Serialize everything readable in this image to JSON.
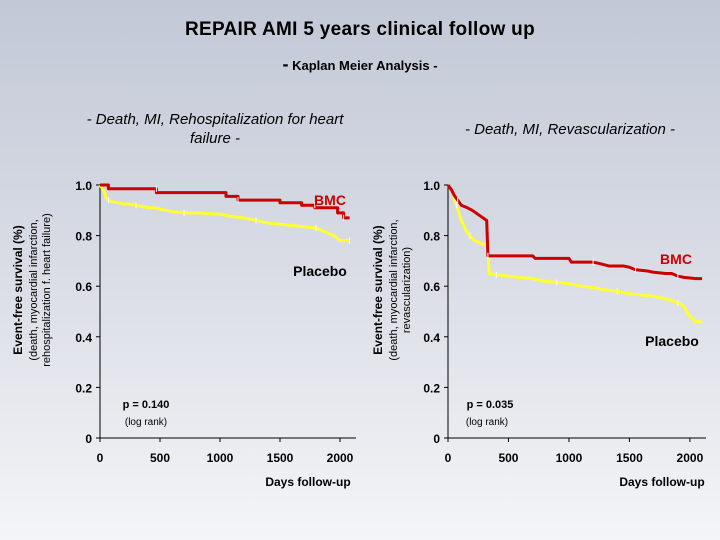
{
  "slide": {
    "title": "REPAIR AMI 5 years clinical follow up",
    "subtitle_dash": "-",
    "subtitle": "Kaplan Meier Analysis -"
  },
  "colors": {
    "bmc": "#cc0000",
    "placebo": "#ffff33"
  },
  "chart_data": [
    {
      "type": "line",
      "title": "- Death, MI, Rehospitalization for heart failure -",
      "ylabel_line1": "Event-free survival (%)",
      "ylabel_line2": "(death, myocardial infarction,",
      "ylabel_line3": "rehospitalization f. heart failure)",
      "xlabel": "Days follow-up",
      "xlim": [
        0,
        2100
      ],
      "ylim": [
        0,
        1.0
      ],
      "x_ticks": [
        "0",
        "500",
        "1000",
        "1500",
        "2000"
      ],
      "y_ticks": [
        "0",
        "0.2",
        "0.4",
        "0.6",
        "0.8",
        "1.0"
      ],
      "annotation_p": "p = 0.140",
      "annotation_test": "(log rank)",
      "series": [
        {
          "name": "BMC",
          "x": [
            0,
            70,
            70,
            470,
            470,
            1050,
            1050,
            1150,
            1150,
            1500,
            1500,
            1680,
            1680,
            1790,
            1790,
            1980,
            1980,
            2030,
            2030,
            2080
          ],
          "y": [
            1.0,
            1.0,
            0.985,
            0.985,
            0.97,
            0.97,
            0.955,
            0.955,
            0.94,
            0.94,
            0.93,
            0.93,
            0.92,
            0.92,
            0.91,
            0.91,
            0.89,
            0.89,
            0.87,
            0.87
          ]
        },
        {
          "name": "Placebo",
          "x": [
            0,
            40,
            50,
            70,
            90,
            150,
            200,
            250,
            300,
            400,
            450,
            550,
            600,
            700,
            800,
            1000,
            1100,
            1200,
            1300,
            1400,
            1500,
            1600,
            1700,
            1800,
            1900,
            1950,
            2000,
            2030,
            2080
          ],
          "y": [
            1.0,
            0.97,
            0.95,
            0.94,
            0.935,
            0.93,
            0.925,
            0.925,
            0.92,
            0.91,
            0.91,
            0.9,
            0.895,
            0.89,
            0.89,
            0.885,
            0.875,
            0.87,
            0.86,
            0.85,
            0.845,
            0.84,
            0.835,
            0.83,
            0.81,
            0.8,
            0.78,
            0.78,
            0.78
          ]
        }
      ]
    },
    {
      "type": "line",
      "title": "- Death, MI, Revascularization -",
      "ylabel_line1": "Event-free survival (%)",
      "ylabel_line2": "(death, myocardial infarction,",
      "ylabel_line3": "revascularization)",
      "xlabel": "Days follow-up",
      "xlim": [
        0,
        2100
      ],
      "ylim": [
        0,
        1.0
      ],
      "x_ticks": [
        "0",
        "500",
        "1000",
        "1500",
        "2000"
      ],
      "y_ticks": [
        "0",
        "0.2",
        "0.4",
        "0.6",
        "0.8",
        "1.0"
      ],
      "annotation_p": "p = 0.035",
      "annotation_test": "(log rank)",
      "series": [
        {
          "name": "BMC",
          "x": [
            0,
            30,
            50,
            80,
            110,
            160,
            200,
            320,
            330,
            700,
            720,
            1000,
            1020,
            1200,
            1250,
            1330,
            1450,
            1500,
            1550,
            1650,
            1700,
            1800,
            1850,
            1900,
            1950,
            2050,
            2100
          ],
          "y": [
            1.0,
            0.98,
            0.96,
            0.94,
            0.92,
            0.91,
            0.9,
            0.86,
            0.72,
            0.72,
            0.71,
            0.71,
            0.695,
            0.695,
            0.69,
            0.68,
            0.68,
            0.675,
            0.665,
            0.66,
            0.655,
            0.65,
            0.65,
            0.64,
            0.635,
            0.63,
            0.63
          ]
        },
        {
          "name": "Placebo",
          "x": [
            0,
            30,
            50,
            70,
            90,
            110,
            130,
            150,
            180,
            220,
            270,
            330,
            340,
            400,
            500,
            600,
            700,
            800,
            900,
            1000,
            1100,
            1200,
            1300,
            1400,
            1500,
            1600,
            1700,
            1800,
            1900,
            1950,
            2000,
            2050,
            2100
          ],
          "y": [
            1.0,
            0.98,
            0.95,
            0.92,
            0.89,
            0.86,
            0.84,
            0.82,
            0.8,
            0.78,
            0.77,
            0.76,
            0.65,
            0.645,
            0.64,
            0.635,
            0.63,
            0.62,
            0.615,
            0.61,
            0.6,
            0.595,
            0.585,
            0.58,
            0.57,
            0.565,
            0.56,
            0.55,
            0.535,
            0.52,
            0.48,
            0.46,
            0.46
          ]
        }
      ]
    }
  ]
}
